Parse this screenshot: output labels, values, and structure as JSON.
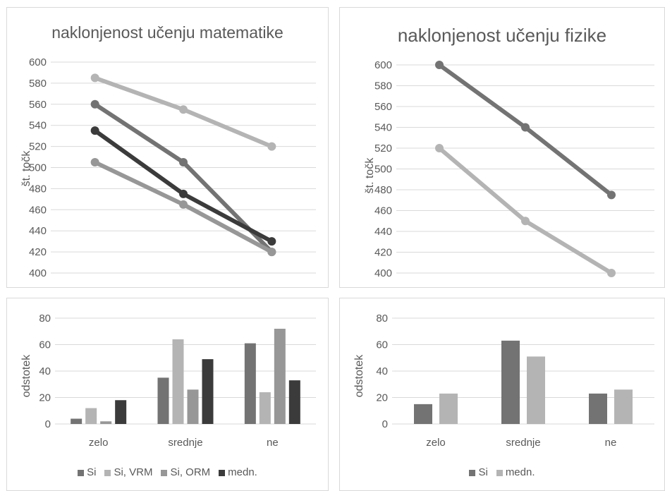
{
  "chart_data": [
    {
      "type": "line",
      "title": "naklonjenost učenju matematike",
      "xlabel": "",
      "ylabel": "št. točk",
      "categories": [
        "zelo",
        "srednje",
        "ne"
      ],
      "ylim": [
        400,
        600
      ],
      "yticks": [
        400,
        420,
        440,
        460,
        480,
        500,
        520,
        540,
        560,
        580,
        600
      ],
      "show_x_tick_labels": false,
      "grid": true,
      "legend": "none",
      "series": [
        {
          "values": [
            585,
            555,
            520
          ],
          "color": "#b4b4b4"
        },
        {
          "values": [
            560,
            505,
            420
          ],
          "color": "#737373"
        },
        {
          "values": [
            505,
            465,
            420
          ],
          "color": "#979797"
        },
        {
          "values": [
            535,
            475,
            430
          ],
          "color": "#3b3b3b"
        }
      ]
    },
    {
      "type": "line",
      "title": "naklonjenost učenju fizike",
      "xlabel": "",
      "ylabel": "št. točk",
      "categories": [
        "zelo",
        "srednje",
        "ne"
      ],
      "ylim": [
        400,
        600
      ],
      "yticks": [
        400,
        420,
        440,
        460,
        480,
        500,
        520,
        540,
        560,
        580,
        600
      ],
      "show_x_tick_labels": false,
      "grid": true,
      "legend": "none",
      "series": [
        {
          "values": [
            600,
            540,
            475
          ],
          "color": "#737373"
        },
        {
          "values": [
            520,
            450,
            400
          ],
          "color": "#b4b4b4"
        }
      ]
    },
    {
      "type": "bar",
      "title": "",
      "xlabel": "",
      "ylabel": "odstotek",
      "categories": [
        "zelo",
        "srednje",
        "ne"
      ],
      "ylim": [
        0,
        80
      ],
      "yticks": [
        0,
        20,
        40,
        60,
        80
      ],
      "show_x_tick_labels": true,
      "grid": true,
      "legend": "bottom",
      "series": [
        {
          "name": "Si",
          "values": [
            4,
            35,
            61
          ],
          "color": "#737373"
        },
        {
          "name": "Si, VRM",
          "values": [
            12,
            64,
            24
          ],
          "color": "#b4b4b4"
        },
        {
          "name": "Si, ORM",
          "values": [
            2,
            26,
            72
          ],
          "color": "#979797"
        },
        {
          "name": "medn.",
          "values": [
            18,
            49,
            33
          ],
          "color": "#3b3b3b"
        }
      ]
    },
    {
      "type": "bar",
      "title": "",
      "xlabel": "",
      "ylabel": "odstotek",
      "categories": [
        "zelo",
        "srednje",
        "ne"
      ],
      "ylim": [
        0,
        80
      ],
      "yticks": [
        0,
        20,
        40,
        60,
        80
      ],
      "show_x_tick_labels": true,
      "grid": true,
      "legend": "bottom",
      "series": [
        {
          "name": "Si",
          "values": [
            15,
            63,
            23
          ],
          "color": "#737373"
        },
        {
          "name": "medn.",
          "values": [
            23,
            51,
            26
          ],
          "color": "#b4b4b4"
        }
      ]
    }
  ]
}
